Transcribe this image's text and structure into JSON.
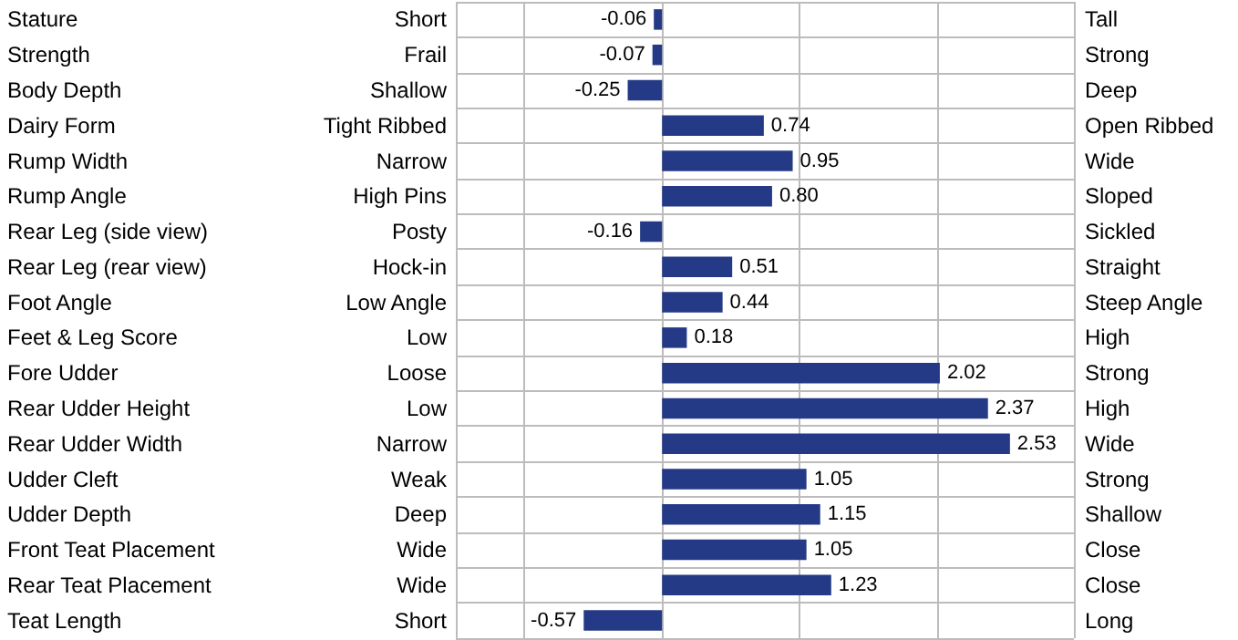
{
  "chart_data": {
    "type": "bar",
    "orientation": "horizontal",
    "categories": [
      "Stature",
      "Strength",
      "Body Depth",
      "Dairy Form",
      "Rump Width",
      "Rump Angle",
      "Rear Leg (side view)",
      "Rear Leg (rear view)",
      "Foot Angle",
      "Feet & Leg Score",
      "Fore Udder",
      "Rear Udder Height",
      "Rear Udder Width",
      "Udder Cleft",
      "Udder Depth",
      "Front Teat Placement",
      "Rear Teat Placement",
      "Teat Length"
    ],
    "values": [
      -0.06,
      -0.07,
      -0.25,
      0.74,
      0.95,
      0.8,
      -0.16,
      0.51,
      0.44,
      0.18,
      2.02,
      2.37,
      2.53,
      1.05,
      1.15,
      1.05,
      1.23,
      -0.57
    ],
    "value_labels": [
      "-0.06",
      "-0.07",
      "-0.25",
      "0.74",
      "0.95",
      "0.80",
      "-0.16",
      "0.51",
      "0.44",
      "0.18",
      "2.02",
      "2.37",
      "2.53",
      "1.05",
      "1.15",
      "1.05",
      "1.23",
      "-0.57"
    ],
    "color": "#253a86",
    "grid": true,
    "annotations": [
      "Short",
      "Tall",
      "Frail",
      "Strong",
      "Shallow",
      "Deep",
      "Tight Ribbed",
      "Open Ribbed",
      "Narrow",
      "Wide",
      "High Pins",
      "Sloped",
      "Posty",
      "Sickled",
      "Hock-in",
      "Straight",
      "Low Angle",
      "Steep Angle",
      "Low",
      "High",
      "Loose",
      "Strong",
      "Low",
      "High",
      "Narrow",
      "Wide",
      "Weak",
      "Strong",
      "Deep",
      "Shallow",
      "Wide",
      "Close",
      "Wide",
      "Close",
      "Short",
      "Long"
    ]
  }
}
